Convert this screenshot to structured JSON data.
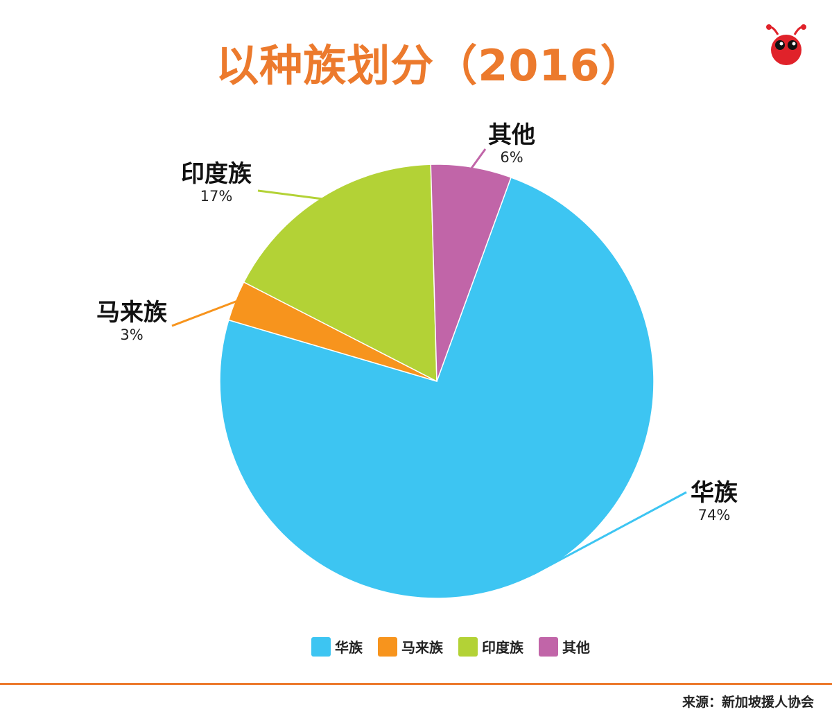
{
  "chart_data": {
    "type": "pie",
    "title": "以种族划分（2016）",
    "slices": [
      {
        "name": "华族",
        "value": 74,
        "label": "74%",
        "color": "#3dc5f2"
      },
      {
        "name": "马来族",
        "value": 3,
        "label": "3%",
        "color": "#f7941d"
      },
      {
        "name": "印度族",
        "value": 17,
        "label": "17%",
        "color": "#b3d236"
      },
      {
        "name": "其他",
        "value": 6,
        "label": "6%",
        "color": "#c165a8"
      }
    ],
    "legend": [
      "华族",
      "马来族",
      "印度族",
      "其他"
    ],
    "legend_position": "bottom"
  },
  "source": "来源：新加坡援人协会",
  "logo_icon": "ant-mascot-icon",
  "accent_color": "#ec7a2d"
}
